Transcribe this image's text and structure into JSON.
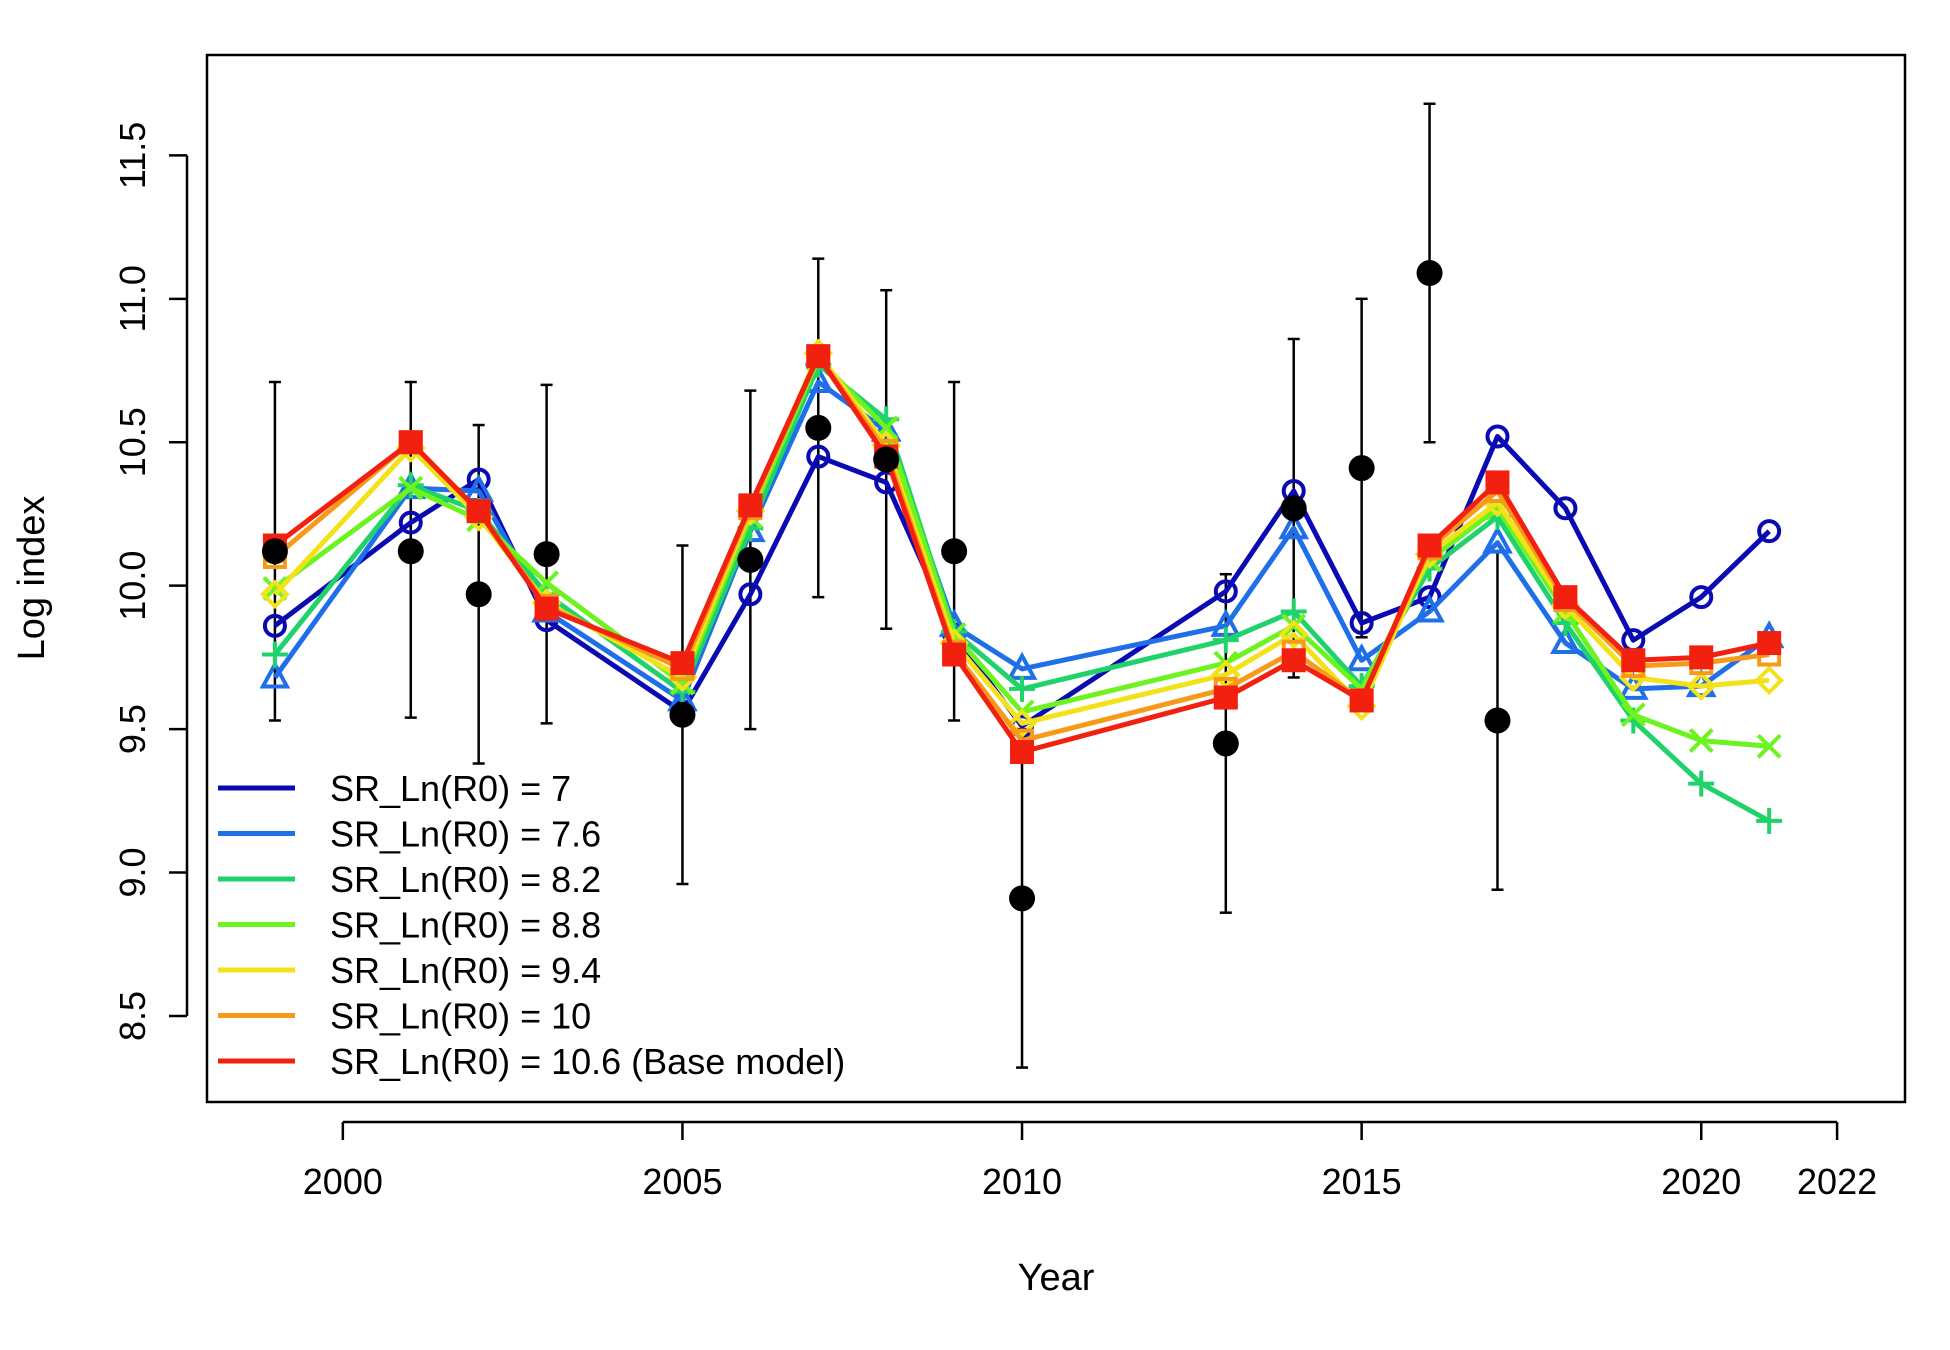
{
  "chart_data": {
    "type": "line",
    "xlabel": "Year",
    "ylabel": "Log index",
    "xlim": [
      1998,
      2023
    ],
    "ylim": [
      8.2,
      11.85
    ],
    "xticks": [
      2000,
      2005,
      2010,
      2015,
      2020,
      2022
    ],
    "yticks": [
      8.5,
      9.0,
      9.5,
      10.0,
      10.5,
      11.0,
      11.5
    ],
    "ytick_labels": [
      "8.5",
      "9.0",
      "9.5",
      "10.0",
      "10.5",
      "11.0",
      "11.5"
    ],
    "grid": false,
    "legend_position": "bottom-left",
    "x": [
      1999,
      2001,
      2002,
      2003,
      2005,
      2006,
      2007,
      2008,
      2009,
      2010,
      2013,
      2014,
      2015,
      2016,
      2017,
      2018,
      2019,
      2020,
      2021
    ],
    "observed": {
      "values": [
        10.12,
        10.12,
        9.97,
        10.11,
        9.55,
        10.09,
        10.55,
        10.44,
        10.12,
        8.91,
        9.45,
        10.27,
        10.41,
        11.09,
        9.53
      ],
      "x": [
        1999,
        2001,
        2002,
        2003,
        2005,
        2006,
        2007,
        2008,
        2009,
        2010,
        2013,
        2014,
        2015,
        2016,
        2017
      ],
      "lower": [
        9.53,
        9.54,
        9.38,
        9.52,
        8.96,
        9.5,
        9.96,
        9.85,
        9.53,
        8.32,
        8.86,
        9.68,
        9.82,
        10.5,
        8.94
      ],
      "upper": [
        10.71,
        10.71,
        10.56,
        10.7,
        10.14,
        10.68,
        11.14,
        11.03,
        10.71,
        9.5,
        10.04,
        10.86,
        11.0,
        11.68,
        10.12
      ],
      "color": "#000000"
    },
    "series": [
      {
        "name": "SR_Ln(R0) =  7",
        "color": "#0A0AB3",
        "marker": "circle",
        "values": [
          9.86,
          10.22,
          10.37,
          9.88,
          9.56,
          9.97,
          10.45,
          10.36,
          9.83,
          9.51,
          9.98,
          10.33,
          9.87,
          9.96,
          10.52,
          10.27,
          9.81,
          9.96,
          10.19
        ]
      },
      {
        "name": "SR_Ln(R0) =  7.6",
        "color": "#1E6FE8",
        "marker": "triangle",
        "values": [
          9.68,
          10.34,
          10.33,
          9.91,
          9.6,
          10.19,
          10.71,
          10.54,
          9.86,
          9.71,
          9.86,
          10.2,
          9.74,
          9.91,
          10.15,
          9.8,
          9.64,
          9.65,
          9.82
        ]
      },
      {
        "name": "SR_Ln(R0) =  8.2",
        "color": "#20D26A",
        "marker": "plus",
        "values": [
          9.76,
          10.35,
          10.26,
          9.97,
          9.63,
          10.2,
          10.77,
          10.58,
          9.84,
          9.64,
          9.81,
          9.91,
          9.65,
          10.06,
          10.24,
          9.87,
          9.53,
          9.31,
          9.18
        ]
      },
      {
        "name": "SR_Ln(R0) =  8.8",
        "color": "#6CF320",
        "marker": "x",
        "values": [
          9.99,
          10.34,
          10.23,
          10.01,
          9.66,
          10.24,
          10.79,
          10.55,
          9.83,
          9.56,
          9.73,
          9.86,
          9.64,
          10.09,
          10.27,
          9.91,
          9.55,
          9.46,
          9.44
        ]
      },
      {
        "name": "SR_Ln(R0) =  9.4",
        "color": "#F3E21A",
        "marker": "diamond",
        "values": [
          9.97,
          10.48,
          10.24,
          9.94,
          9.68,
          10.26,
          10.81,
          10.49,
          9.8,
          9.52,
          9.69,
          9.83,
          9.58,
          10.11,
          10.29,
          9.93,
          9.68,
          9.65,
          9.67
        ]
      },
      {
        "name": "SR_Ln(R0) =  10",
        "color": "#F79A1A",
        "marker": "square-open",
        "values": [
          10.1,
          10.5,
          10.26,
          9.93,
          9.71,
          10.27,
          10.8,
          10.47,
          9.77,
          9.46,
          9.64,
          9.77,
          9.6,
          10.13,
          10.33,
          9.95,
          9.72,
          9.73,
          9.76
        ]
      },
      {
        "name": "SR_Ln(R0) =  10.6 (Base model)",
        "color": "#F2200F",
        "marker": "square",
        "values": [
          10.14,
          10.5,
          10.26,
          9.92,
          9.73,
          10.28,
          10.8,
          10.45,
          9.76,
          9.42,
          9.61,
          9.74,
          9.6,
          10.14,
          10.36,
          9.96,
          9.74,
          9.75,
          9.8
        ]
      }
    ]
  }
}
